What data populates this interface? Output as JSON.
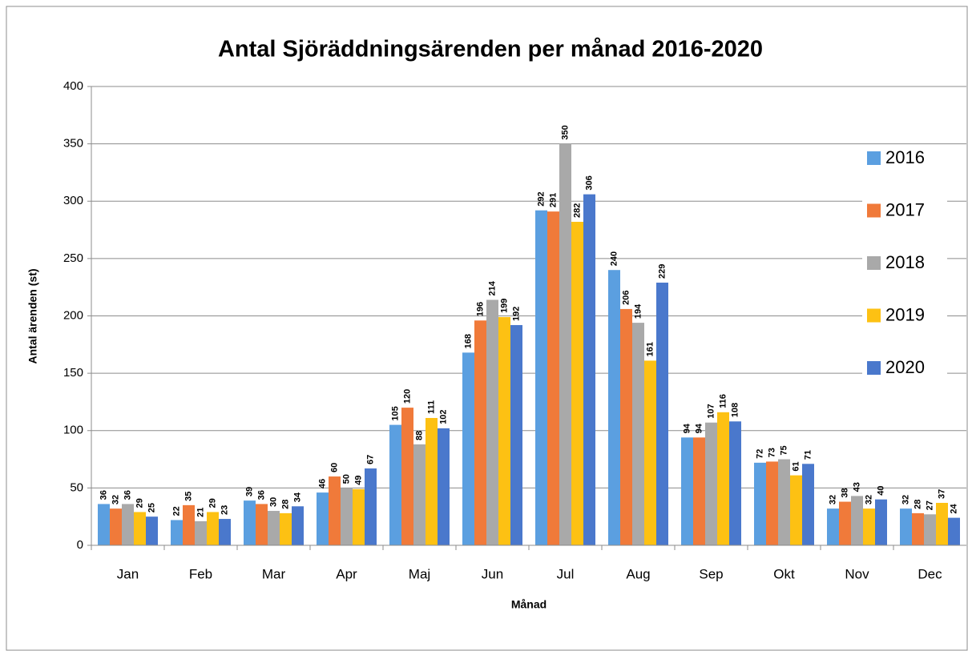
{
  "chart_data": {
    "type": "bar",
    "title": "Antal Sjöräddningsärenden per månad 2016-2020",
    "x_label": "Månad",
    "y_label": "Antal ärenden (st)",
    "categories": [
      "Jan",
      "Feb",
      "Mar",
      "Apr",
      "Maj",
      "Jun",
      "Jul",
      "Aug",
      "Sep",
      "Okt",
      "Nov",
      "Dec"
    ],
    "series": [
      {
        "name": "2016",
        "color": "#5b9fe0",
        "values": [
          36,
          22,
          39,
          46,
          105,
          168,
          292,
          240,
          94,
          72,
          32,
          32
        ]
      },
      {
        "name": "2017",
        "color": "#f07a3a",
        "values": [
          32,
          35,
          36,
          60,
          120,
          196,
          291,
          206,
          94,
          73,
          38,
          28
        ]
      },
      {
        "name": "2018",
        "color": "#a9a9a9",
        "values": [
          36,
          21,
          30,
          50,
          88,
          214,
          350,
          194,
          107,
          75,
          43,
          27
        ]
      },
      {
        "name": "2019",
        "color": "#fdc113",
        "values": [
          29,
          29,
          28,
          49,
          111,
          199,
          282,
          161,
          116,
          61,
          32,
          37
        ]
      },
      {
        "name": "2020",
        "color": "#4a78cc",
        "values": [
          25,
          23,
          34,
          67,
          102,
          192,
          306,
          229,
          108,
          71,
          40,
          24
        ]
      }
    ],
    "ylim": [
      0,
      400
    ],
    "yticks": [
      0,
      50,
      100,
      150,
      200,
      250,
      300,
      350,
      400
    ],
    "grid": true,
    "legend": "right"
  }
}
